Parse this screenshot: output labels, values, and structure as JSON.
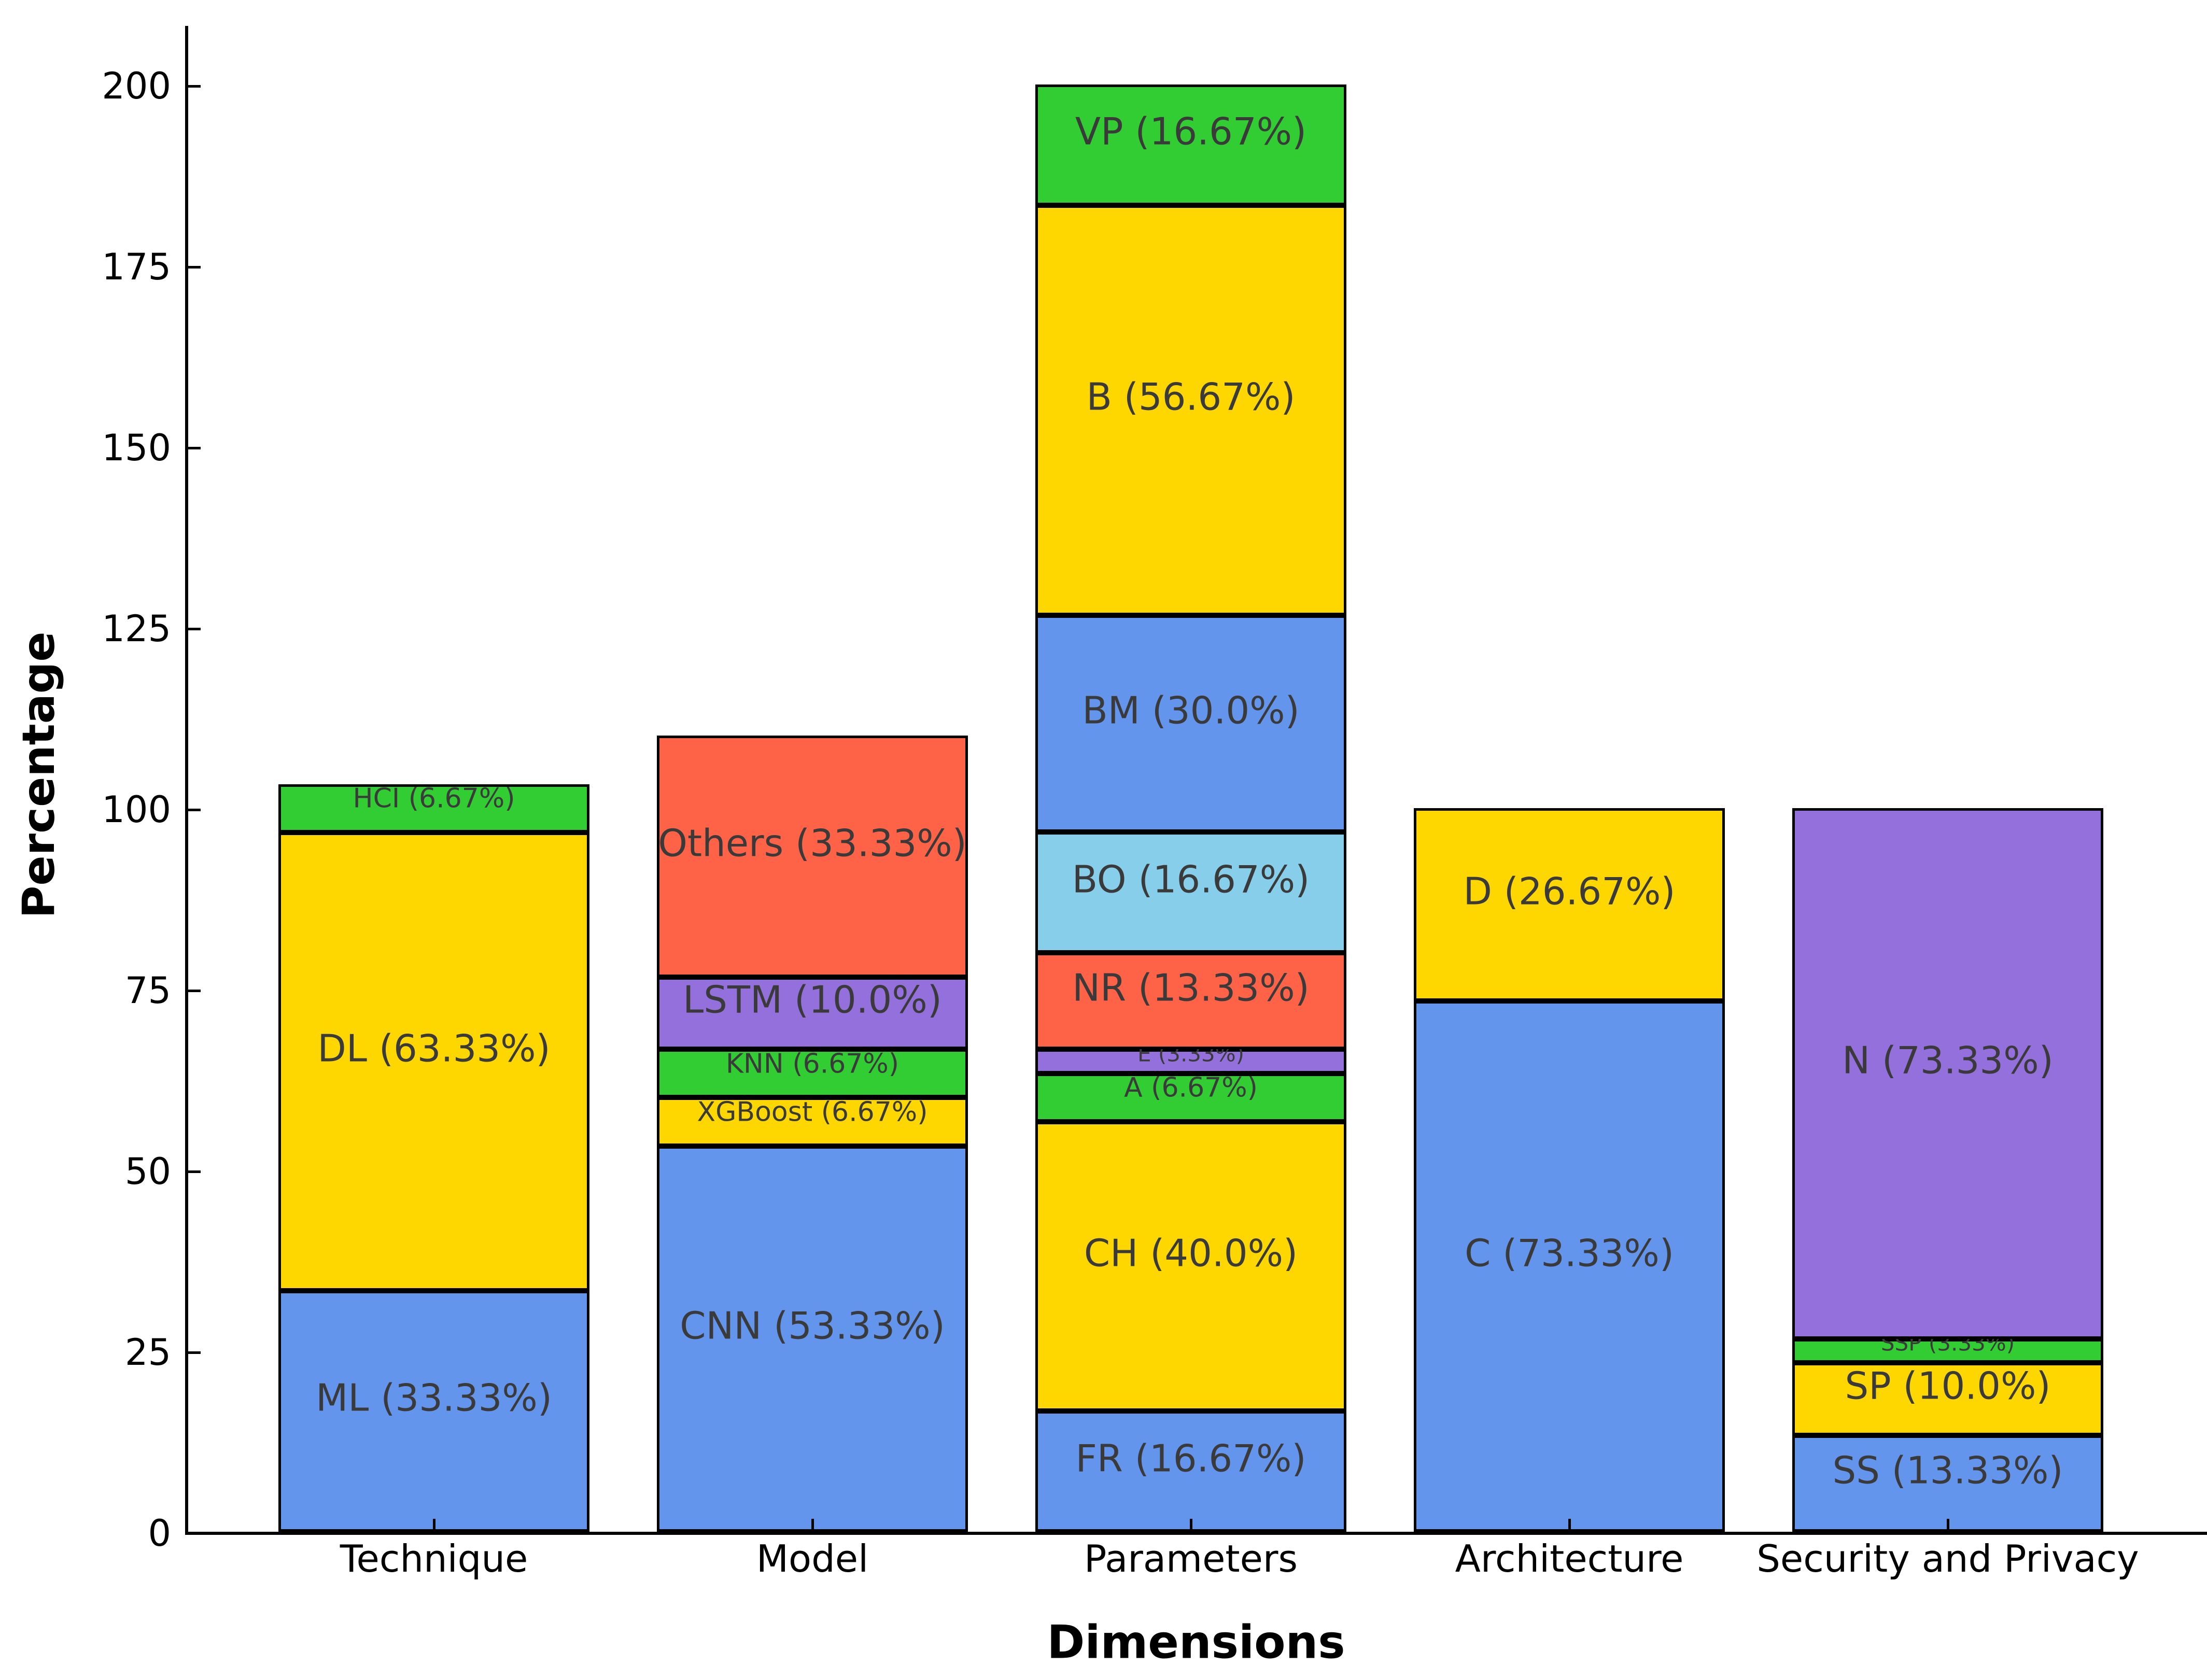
{
  "chart_data": {
    "type": "bar",
    "stacked": true,
    "title": "",
    "xlabel": "Dimensions",
    "ylabel": "Percentage",
    "ylim": [
      0,
      200
    ],
    "yticks": [
      0,
      25,
      50,
      75,
      100,
      125,
      150,
      175,
      200
    ],
    "grid": false,
    "legend_position": "none",
    "text_color": "#3A3A3A",
    "colors": {
      "blue": "#6495ED",
      "gold": "#FFD700",
      "green": "#32CD32",
      "purple": "#9370DB",
      "red": "#FF6347",
      "skyblue": "#87CEEB"
    },
    "categories": [
      "Technique",
      "Model",
      "Parameters",
      "Architecture",
      "Security and Privacy"
    ],
    "bars": [
      {
        "category": "Technique",
        "total": 103.33,
        "segments": [
          {
            "label": "ML",
            "pct": 33.33,
            "text": "ML (33.33%)",
            "color": "#6495ED"
          },
          {
            "label": "DL",
            "pct": 63.33,
            "text": "DL (63.33%)",
            "color": "#FFD700"
          },
          {
            "label": "HCI",
            "pct": 6.67,
            "text": "HCI (6.67%)",
            "color": "#32CD32"
          }
        ]
      },
      {
        "category": "Model",
        "total": 110.0,
        "segments": [
          {
            "label": "CNN",
            "pct": 53.33,
            "text": "CNN (53.33%)",
            "color": "#6495ED"
          },
          {
            "label": "XGBoost",
            "pct": 6.67,
            "text": "XGBoost (6.67%)",
            "color": "#FFD700"
          },
          {
            "label": "KNN",
            "pct": 6.67,
            "text": "KNN (6.67%)",
            "color": "#32CD32"
          },
          {
            "label": "LSTM",
            "pct": 10.0,
            "text": "LSTM (10.0%)",
            "color": "#9370DB"
          },
          {
            "label": "Others",
            "pct": 33.33,
            "text": "Others (33.33%)",
            "color": "#FF6347"
          }
        ]
      },
      {
        "category": "Parameters",
        "total": 200.0,
        "segments": [
          {
            "label": "FR",
            "pct": 16.67,
            "text": "FR (16.67%)",
            "color": "#6495ED"
          },
          {
            "label": "CH",
            "pct": 40.0,
            "text": "CH (40.0%)",
            "color": "#FFD700"
          },
          {
            "label": "A",
            "pct": 6.67,
            "text": "A (6.67%)",
            "color": "#32CD32"
          },
          {
            "label": "E",
            "pct": 3.33,
            "text": "E (3.33%)",
            "color": "#9370DB"
          },
          {
            "label": "NR",
            "pct": 13.33,
            "text": "NR (13.33%)",
            "color": "#FF6347"
          },
          {
            "label": "BO",
            "pct": 16.67,
            "text": "BO (16.67%)",
            "color": "#87CEEB"
          },
          {
            "label": "BM",
            "pct": 30.0,
            "text": "BM (30.0%)",
            "color": "#6495ED"
          },
          {
            "label": "B",
            "pct": 56.67,
            "text": "B (56.67%)",
            "color": "#FFD700"
          },
          {
            "label": "VP",
            "pct": 16.67,
            "text": "VP (16.67%)",
            "color": "#32CD32"
          }
        ]
      },
      {
        "category": "Architecture",
        "total": 100.0,
        "segments": [
          {
            "label": "C",
            "pct": 73.33,
            "text": "C (73.33%)",
            "color": "#6495ED"
          },
          {
            "label": "D",
            "pct": 26.67,
            "text": "D (26.67%)",
            "color": "#FFD700"
          }
        ]
      },
      {
        "category": "Security and Privacy",
        "total": 100.0,
        "segments": [
          {
            "label": "SS",
            "pct": 13.33,
            "text": "SS (13.33%)",
            "color": "#6495ED"
          },
          {
            "label": "SP",
            "pct": 10.0,
            "text": "SP (10.0%)",
            "color": "#FFD700"
          },
          {
            "label": "SSP",
            "pct": 3.33,
            "text": "SSP (3.33%)",
            "color": "#32CD32"
          },
          {
            "label": "N",
            "pct": 73.33,
            "text": "N (73.33%)",
            "color": "#9370DB"
          }
        ]
      }
    ]
  }
}
